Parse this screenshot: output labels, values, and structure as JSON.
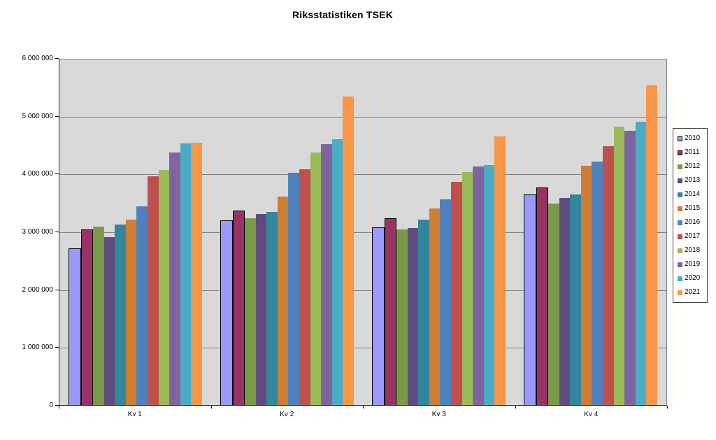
{
  "chart_data": {
    "type": "bar",
    "title": "Riksstatistiken TSEK",
    "categories": [
      "Kv 1",
      "Kv 2",
      "Kv 3",
      "Kv 4"
    ],
    "series": [
      {
        "name": "2010",
        "color": "#9999FF",
        "border": "#000000",
        "values": [
          2710000,
          3200000,
          3070000,
          3640000
        ]
      },
      {
        "name": "2011",
        "color": "#993366",
        "border": "#000000",
        "values": [
          3040000,
          3360000,
          3230000,
          3760000
        ]
      },
      {
        "name": "2012",
        "color": "#7A9A49",
        "values": [
          3100000,
          3240000,
          3050000,
          3500000
        ]
      },
      {
        "name": "2013",
        "color": "#5F4B7E",
        "values": [
          2910000,
          3310000,
          3070000,
          3600000
        ]
      },
      {
        "name": "2014",
        "color": "#33879D",
        "values": [
          3130000,
          3350000,
          3220000,
          3660000
        ]
      },
      {
        "name": "2015",
        "color": "#CE7D35",
        "values": [
          3220000,
          3620000,
          3410000,
          4160000
        ]
      },
      {
        "name": "2016",
        "color": "#4F81BD",
        "values": [
          3450000,
          4030000,
          3570000,
          4230000
        ]
      },
      {
        "name": "2017",
        "color": "#C0504D",
        "values": [
          3970000,
          4090000,
          3880000,
          4500000
        ]
      },
      {
        "name": "2018",
        "color": "#9BBB59",
        "values": [
          4080000,
          4390000,
          4040000,
          4830000
        ]
      },
      {
        "name": "2019",
        "color": "#8064A2",
        "values": [
          4380000,
          4530000,
          4140000,
          4760000
        ]
      },
      {
        "name": "2020",
        "color": "#4BACC6",
        "values": [
          4540000,
          4620000,
          4170000,
          4920000
        ]
      },
      {
        "name": "2021",
        "color": "#F79646",
        "values": [
          4560000,
          5360000,
          4660000,
          5550000
        ]
      }
    ],
    "ylim": [
      0,
      6000000
    ],
    "ytick_interval": 1000000,
    "ytick_labels": [
      "0",
      "1 000 000",
      "2 000 000",
      "3 000 000",
      "4 000 000",
      "5 000 000",
      "6 000 000"
    ],
    "grid": true,
    "legend_position": "right",
    "plot_background": "#D9D9D9",
    "gridline_color": "#808080",
    "axis_color": "#000000"
  }
}
